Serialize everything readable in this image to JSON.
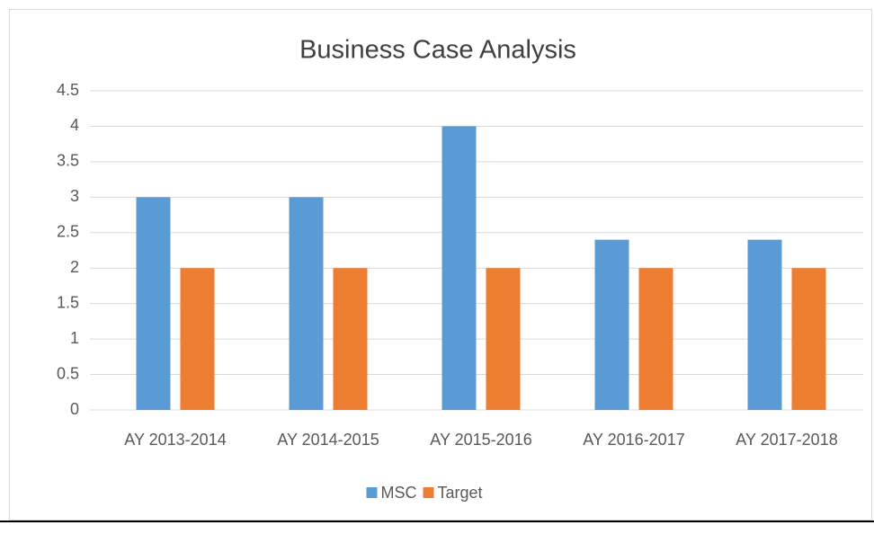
{
  "chart_data": {
    "type": "bar",
    "title": "Business Case Analysis",
    "categories": [
      "AY 2013-2014",
      "AY 2014-2015",
      "AY 2015-2016",
      "AY 2016-2017",
      "AY 2017-2018"
    ],
    "series": [
      {
        "name": "MSC",
        "color": "#5b9bd5",
        "values": [
          3,
          3,
          4,
          2.4,
          2.4
        ]
      },
      {
        "name": "Target",
        "color": "#ed7d31",
        "values": [
          2,
          2,
          2,
          2,
          2
        ]
      }
    ],
    "ylim": [
      0,
      4.5
    ],
    "yticks": [
      0,
      0.5,
      1,
      1.5,
      2,
      2.5,
      3,
      3.5,
      4,
      4.5
    ],
    "grid": true,
    "legend": "bottom"
  }
}
